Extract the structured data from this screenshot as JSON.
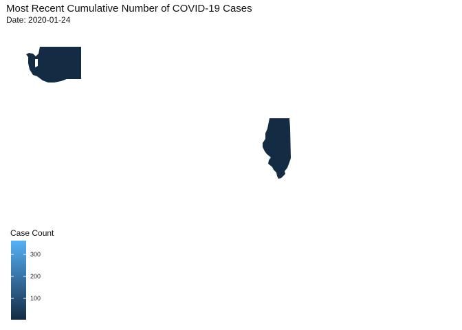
{
  "title": "Most Recent Cumulative Number of COVID-19 Cases",
  "subtitle": "Date: 2020-01-24",
  "legend": {
    "title": "Case Count",
    "scale_max": 360,
    "colors": {
      "low": "#132B43",
      "high": "#56B1F7"
    },
    "ticks": [
      {
        "value": 300,
        "label": "300"
      },
      {
        "value": 200,
        "label": "200"
      },
      {
        "value": 100,
        "label": "100"
      }
    ]
  },
  "map": {
    "type": "choropleth",
    "states": [
      {
        "name": "Washington",
        "case_count": 1,
        "fill": "#132B43"
      },
      {
        "name": "Illinois",
        "case_count": 1,
        "fill": "#132B43"
      }
    ]
  }
}
